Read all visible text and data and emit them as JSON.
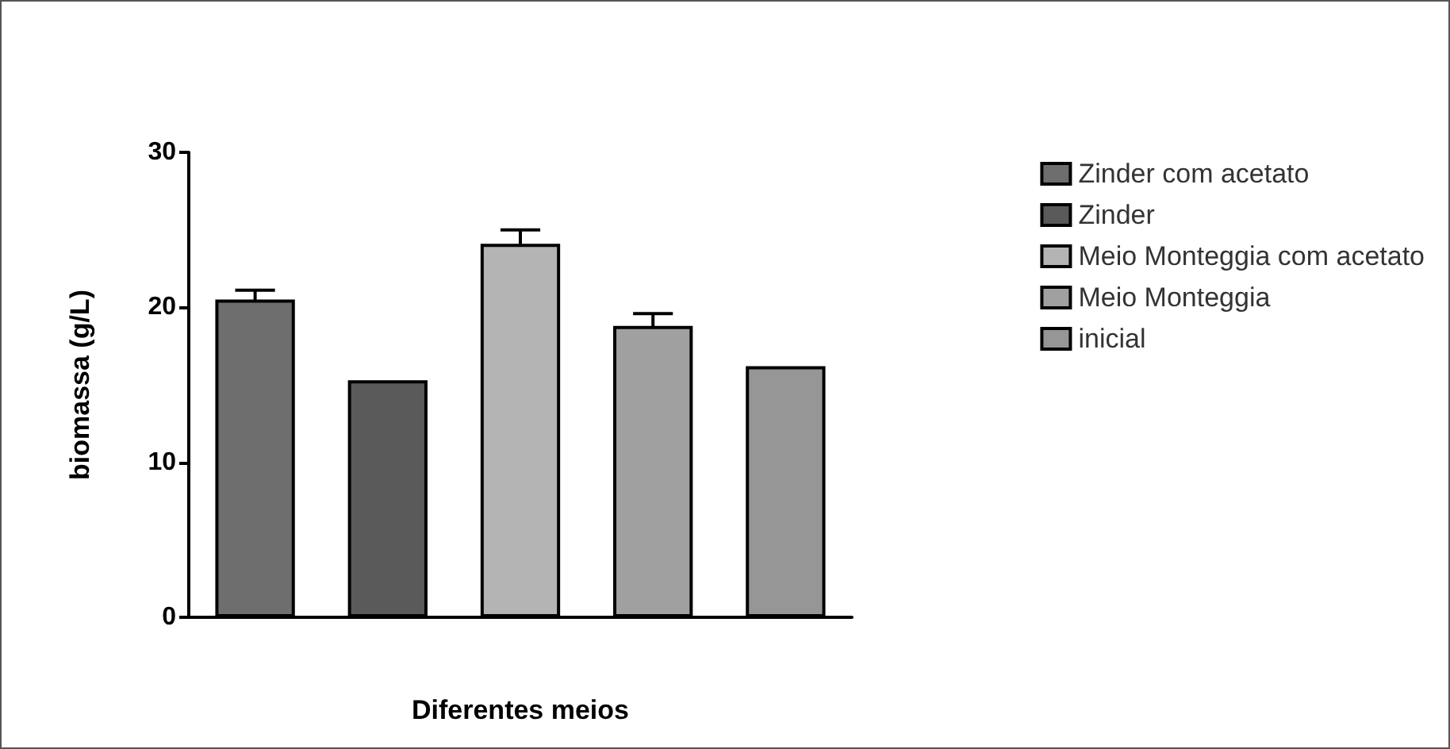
{
  "chart_data": {
    "type": "bar",
    "xlabel": "Diferentes meios",
    "ylabel": "biomassa (g/L)",
    "categories": [
      null,
      null,
      null,
      null,
      null
    ],
    "series": [
      {
        "name": "Zinder com acetato",
        "color": "#6e6e6e",
        "values": [
          20.5,
          null,
          null,
          null,
          null
        ],
        "errors": [
          0.6,
          null,
          null,
          null,
          null
        ]
      },
      {
        "name": "Zinder",
        "color": "#5a5a5a",
        "values": [
          null,
          15.3,
          null,
          null,
          null
        ]
      },
      {
        "name": "Meio Monteggia com acetato",
        "color": "#b4b4b4",
        "values": [
          null,
          null,
          24.1,
          null,
          null
        ],
        "errors": [
          null,
          null,
          0.9,
          null,
          null
        ]
      },
      {
        "name": "Meio Monteggia",
        "color": "#a0a0a0",
        "values": [
          null,
          null,
          null,
          18.8,
          null
        ],
        "errors": [
          null,
          null,
          null,
          0.8,
          null
        ]
      },
      {
        "name": "inicial",
        "color": "#969696",
        "values": [
          null,
          null,
          null,
          null,
          16.2
        ]
      }
    ],
    "ylim": [
      0,
      30
    ],
    "yticks": [
      0,
      10,
      20,
      30
    ],
    "grid": false,
    "legend": "right"
  }
}
